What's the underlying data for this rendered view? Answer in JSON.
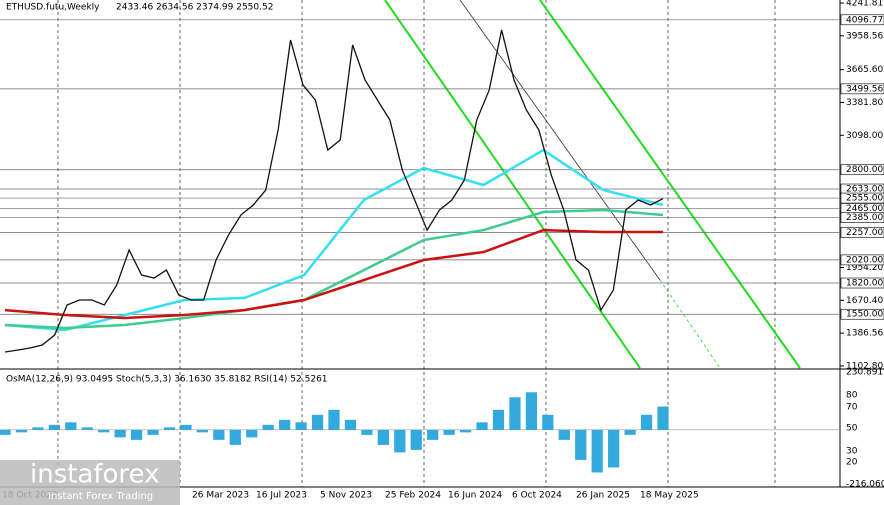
{
  "header": {
    "symbol": "ETHUSD.futu,Weekly",
    "ohlc": "2433.46 2634.56 2374.99 2550.52"
  },
  "chart_data": {
    "type": "line",
    "ylim": [
      1085,
      4268
    ],
    "price_ticks": [
      {
        "value": 4241.81,
        "label": "4241.81"
      },
      {
        "value": 3958.56,
        "label": "3958.56"
      },
      {
        "value": 3665.6,
        "label": "3665.60"
      },
      {
        "value": 3381.8,
        "label": "3381.80"
      },
      {
        "value": 3098,
        "label": "3098.00"
      },
      {
        "value": 1954.2,
        "label": "1954.20"
      },
      {
        "value": 1670.4,
        "label": "1670.40"
      },
      {
        "value": 1386.56,
        "label": "1386.56"
      },
      {
        "value": 1102.8,
        "label": "1102.80"
      }
    ],
    "levels": [
      {
        "value": 4096.77,
        "label": "4096.77"
      },
      {
        "value": 3499.56,
        "label": "3499.56"
      },
      {
        "value": 2800,
        "label": "2800.00"
      },
      {
        "value": 2633,
        "label": "2633.00"
      },
      {
        "value": 2555,
        "label": "2555.00"
      },
      {
        "value": 2465,
        "label": "2465.00"
      },
      {
        "value": 2385,
        "label": "2385.00"
      },
      {
        "value": 2257,
        "label": "2257.00"
      },
      {
        "value": 2020,
        "label": "2020.00"
      },
      {
        "value": 1820,
        "label": "1820.00"
      },
      {
        "value": 1550,
        "label": "1550.00"
      }
    ],
    "dates": [
      "18 Oct 2022",
      "26 Mar 2023",
      "16 Jul 2023",
      "5 Nov 2023",
      "25 Feb 2024",
      "16 Jun 2024",
      "6 Oct 2024",
      "26 Jan 2025",
      "18 May 2025"
    ],
    "closes": [
      1223,
      1240,
      1258,
      1284,
      1370,
      1630,
      1673,
      1673,
      1630,
      1803,
      2106,
      1889,
      1863,
      1932,
      1716,
      1673,
      1673,
      2019,
      2235,
      2408,
      2495,
      2624,
      3144,
      3922,
      3533,
      3403,
      2970,
      3057,
      3879,
      3576,
      3403,
      3230,
      2798,
      2538,
      2278,
      2452,
      2538,
      2711,
      3230,
      3489,
      4009,
      3576,
      3316,
      3144,
      2754,
      2452,
      2019,
      1932,
      1586,
      1759,
      2452,
      2538,
      2495,
      2550.52
    ],
    "ma": [
      {
        "color": "#33e0f0",
        "values": [
          1457,
          1414,
          1543,
          1673,
          1690,
          1889,
          2538,
          2815,
          2668,
          2970,
          2625,
          2495
        ]
      },
      {
        "color": "#3ccc8c",
        "values": [
          1457,
          1431,
          1457,
          1517,
          1586,
          1673,
          1932,
          2192,
          2278,
          2434,
          2452,
          2408
        ]
      },
      {
        "color": "#cc1111",
        "values": [
          1586,
          1543,
          1517,
          1543,
          1586,
          1673,
          1846,
          2019,
          2088,
          2278,
          2261,
          2261
        ]
      }
    ],
    "indicator": {
      "title": "OsMA(12,26,9) 93.0495  Stoch(5,3,3) 36.1630 35.8182  RSI(14) 52.5261",
      "ylim": [
        -216.0603,
        230.8919
      ],
      "ticks": [
        {
          "value": 230.8919,
          "label": "230.8919"
        },
        {
          "value": -216.0603,
          "label": "-216.0603"
        }
      ],
      "scale_labels": [
        "80",
        "70",
        "50",
        "30",
        "20"
      ],
      "osma": [
        -20,
        -10,
        10,
        20,
        30,
        10,
        -10,
        -30,
        -40,
        -20,
        10,
        20,
        -10,
        -40,
        -60,
        -30,
        20,
        40,
        30,
        60,
        80,
        40,
        -20,
        -60,
        -90,
        -80,
        -40,
        -20,
        -10,
        30,
        80,
        130,
        150,
        60,
        -40,
        -120,
        -170,
        -150,
        -20,
        60,
        93.0495
      ]
    },
    "watermark": {
      "brand": "instaforex",
      "slogan": "Instant Forex Trading"
    }
  }
}
